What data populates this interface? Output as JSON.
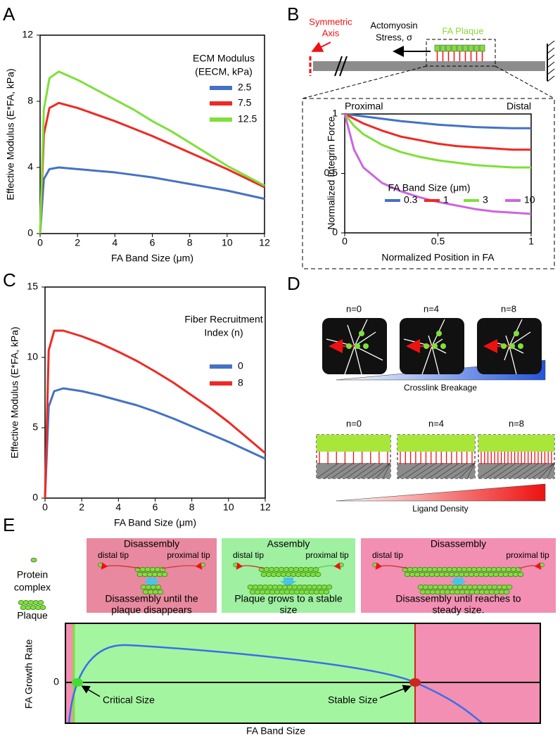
{
  "panel_labels": [
    "A",
    "B",
    "C",
    "D",
    "E"
  ],
  "chart_data": [
    {
      "type": "line",
      "x_label": "FA Band Size (μm)",
      "y_label": "Effective Modulus (E*FA, kPa)",
      "legend_title": [
        "ECM Modulus",
        "(EECM, kPa)"
      ],
      "x": [
        0,
        0.2,
        0.5,
        1,
        2,
        3,
        4,
        5,
        6,
        7,
        8,
        9,
        10,
        11,
        12
      ],
      "series": [
        {
          "name": "2.5",
          "color": "#4472c4",
          "values": [
            0,
            3.3,
            3.9,
            4.0,
            3.9,
            3.8,
            3.7,
            3.55,
            3.4,
            3.2,
            3.0,
            2.8,
            2.6,
            2.35,
            2.1
          ]
        },
        {
          "name": "7.5",
          "color": "#ee2a24",
          "values": [
            0,
            6.0,
            7.6,
            7.9,
            7.6,
            7.2,
            6.8,
            6.35,
            5.9,
            5.4,
            4.9,
            4.4,
            3.9,
            3.35,
            2.8
          ]
        },
        {
          "name": "12.5",
          "color": "#7ee03a",
          "values": [
            0,
            7.5,
            9.4,
            9.8,
            9.3,
            8.7,
            8.1,
            7.5,
            6.8,
            6.2,
            5.5,
            4.8,
            4.1,
            3.5,
            2.9
          ]
        }
      ],
      "xlim": [
        0,
        12
      ],
      "xticks": [
        0,
        2,
        4,
        6,
        8,
        10,
        12
      ],
      "ylim": [
        0,
        12
      ],
      "yticks": [
        0,
        4,
        8,
        12
      ]
    },
    {
      "type": "line",
      "x_label": "Normalized Position in FA",
      "y_label": "Normalized Integrin Force",
      "annotations": [
        "Proximal",
        "Distal"
      ],
      "legend_title": [
        "FA Band Size (μm)"
      ],
      "x": [
        0,
        0.05,
        0.1,
        0.2,
        0.3,
        0.4,
        0.5,
        0.6,
        0.7,
        0.8,
        0.9,
        1
      ],
      "series": [
        {
          "name": "0.3",
          "color": "#4472c4",
          "values": [
            1,
            0.99,
            0.98,
            0.96,
            0.94,
            0.925,
            0.91,
            0.9,
            0.89,
            0.885,
            0.88,
            0.88
          ]
        },
        {
          "name": "1",
          "color": "#ee2a24",
          "values": [
            1,
            0.96,
            0.92,
            0.86,
            0.81,
            0.78,
            0.75,
            0.73,
            0.72,
            0.71,
            0.7,
            0.7
          ]
        },
        {
          "name": "3",
          "color": "#7ee03a",
          "values": [
            1,
            0.9,
            0.83,
            0.74,
            0.68,
            0.64,
            0.61,
            0.59,
            0.57,
            0.56,
            0.55,
            0.55
          ]
        },
        {
          "name": "10",
          "color": "#cc66dd",
          "values": [
            1,
            0.7,
            0.55,
            0.42,
            0.35,
            0.3,
            0.26,
            0.23,
            0.2,
            0.18,
            0.17,
            0.16
          ]
        }
      ],
      "xlim": [
        0,
        1
      ],
      "xticks": [
        0,
        0.5,
        1
      ],
      "ylim": [
        0,
        1
      ],
      "yticks": [
        0,
        0.5,
        1
      ]
    },
    {
      "type": "line",
      "x_label": "FA Band Size (μm)",
      "y_label": "Effective Modulus (E*FA, kPa)",
      "legend_title": [
        "Fiber Recruitment",
        "Index (n)"
      ],
      "x": [
        0,
        0.2,
        0.5,
        1,
        2,
        3,
        4,
        5,
        6,
        7,
        8,
        9,
        10,
        11,
        12
      ],
      "series": [
        {
          "name": "0",
          "color": "#4472c4",
          "values": [
            0,
            6.5,
            7.6,
            7.8,
            7.6,
            7.3,
            6.95,
            6.6,
            6.15,
            5.65,
            5.1,
            4.55,
            4.0,
            3.4,
            2.8
          ]
        },
        {
          "name": "8",
          "color": "#ee2a24",
          "values": [
            0,
            10.5,
            11.9,
            11.9,
            11.5,
            11.0,
            10.4,
            9.75,
            9.0,
            8.2,
            7.3,
            6.4,
            5.4,
            4.3,
            3.2
          ]
        }
      ],
      "xlim": [
        0,
        12
      ],
      "xticks": [
        0,
        2,
        4,
        6,
        8,
        10,
        12
      ],
      "ylim": [
        0,
        15
      ],
      "yticks": [
        0,
        5,
        10,
        15
      ]
    }
  ],
  "schematic_b": {
    "symmetric_axis": [
      "Symmetric",
      "Axis"
    ],
    "stress": [
      "Actomyosin",
      "Stress, σ"
    ],
    "plaque": "FA Plaque"
  },
  "panel_d": {
    "top_labels": [
      "n=0",
      "n=4",
      "n=8"
    ],
    "top_caption": "Crosslink Breakage",
    "bottom_labels": [
      "n=0",
      "n=4",
      "n=8"
    ],
    "bottom_caption": "Ligand Density"
  },
  "panel_e": {
    "legend": [
      [
        "Protein",
        "complex"
      ],
      [
        "Plaque"
      ]
    ],
    "boxes": [
      {
        "title": "Disassembly",
        "left": "distal tip",
        "right": "proximal tip",
        "caption": [
          "Disassembly until the",
          "plaque disappears"
        ]
      },
      {
        "title": "Assembly",
        "left": "distal tip",
        "right": "proximal tip",
        "caption": [
          "Plaque grows to a stable",
          "size"
        ]
      },
      {
        "title": "Disassembly",
        "left": "distal tip",
        "right": "proximal tip",
        "caption": [
          "Disassembly until reaches to",
          "steady size."
        ]
      }
    ],
    "y_label": "FA Growth Rate",
    "zero": "0",
    "x_label": "FA Band Size",
    "critical": "Critical Size",
    "stable": "Stable Size"
  }
}
